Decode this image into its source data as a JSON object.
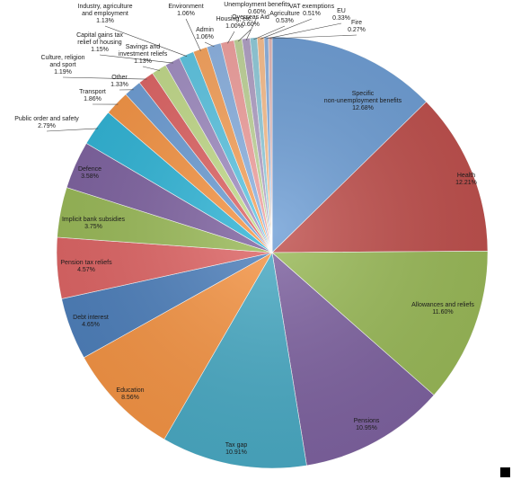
{
  "chart_data": {
    "type": "pie",
    "title": "",
    "unit": "%",
    "slices": [
      {
        "label": "Specific non-unemployment benefits",
        "value": 12.68,
        "value_label": "12.68%",
        "color": "#6f9fd6"
      },
      {
        "label": "Health",
        "value": 12.21,
        "value_label": "12.21%",
        "color": "#c0504d"
      },
      {
        "label": "Allowances and reliefs",
        "value": 11.6,
        "value_label": "11.60%",
        "color": "#9bbb59"
      },
      {
        "label": "Pensions",
        "value": 10.95,
        "value_label": "10.95%",
        "color": "#8064a2"
      },
      {
        "label": "Tax gap",
        "value": 10.91,
        "value_label": "10.91%",
        "color": "#4bacc6"
      },
      {
        "label": "Education",
        "value": 8.56,
        "value_label": "8.56%",
        "color": "#f79646"
      },
      {
        "label": "Debt interest",
        "value": 4.65,
        "value_label": "4.65%",
        "color": "#4f81bd"
      },
      {
        "label": "Pension tax reliefs",
        "value": 4.57,
        "value_label": "4.57%",
        "color": "#e06666"
      },
      {
        "label": "Implicit bank subsidies",
        "value": 3.75,
        "value_label": "3.75%",
        "color": "#9bbb59"
      },
      {
        "label": "Defence",
        "value": 3.58,
        "value_label": "3.58%",
        "color": "#8064a2"
      },
      {
        "label": "Public order and safety",
        "value": 2.79,
        "value_label": "2.79%",
        "color": "#31b6d8"
      },
      {
        "label": "Transport",
        "value": 1.86,
        "value_label": "1.86%",
        "color": "#f79646"
      },
      {
        "label": "Other",
        "value": 1.33,
        "value_label": "1.33%",
        "color": "#6f9fd6"
      },
      {
        "label": "Culture, religion and sport",
        "value": 1.19,
        "value_label": "1.19%",
        "color": "#e06666"
      },
      {
        "label": "Savings and investment reliefs",
        "value": 1.13,
        "value_label": "1.13%",
        "color": "#c4dc8c"
      },
      {
        "label": "Capital gains tax relief of housing",
        "value": 1.15,
        "value_label": "1.15%",
        "color": "#a390c4"
      },
      {
        "label": "Industry, agriculture and employment",
        "value": 1.13,
        "value_label": "1.13%",
        "color": "#5fc7e4"
      },
      {
        "label": "Environment",
        "value": 1.06,
        "value_label": "1.06%",
        "color": "#f9a55f"
      },
      {
        "label": "Admin",
        "value": 1.06,
        "value_label": "1.06%",
        "color": "#8eb4e3"
      },
      {
        "label": "Housing, etc.",
        "value": 1.0,
        "value_label": "1.00%",
        "color": "#f2a2a0"
      },
      {
        "label": "Overseas Aid",
        "value": 0.6,
        "value_label": "0.60%",
        "color": "#c2d69b"
      },
      {
        "label": "Unemployment benefits",
        "value": 0.6,
        "value_label": "0.60%",
        "color": "#b3a2c7"
      },
      {
        "label": "Agriculture",
        "value": 0.53,
        "value_label": "0.53%",
        "color": "#92cddc"
      },
      {
        "label": "VAT exemptions",
        "value": 0.51,
        "value_label": "0.51%",
        "color": "#fac08f"
      },
      {
        "label": "EU",
        "value": 0.33,
        "value_label": "0.33%",
        "color": "#8db3e2"
      },
      {
        "label": "Fire",
        "value": 0.27,
        "value_label": "0.27%",
        "color": "#e6b9b8"
      }
    ]
  }
}
